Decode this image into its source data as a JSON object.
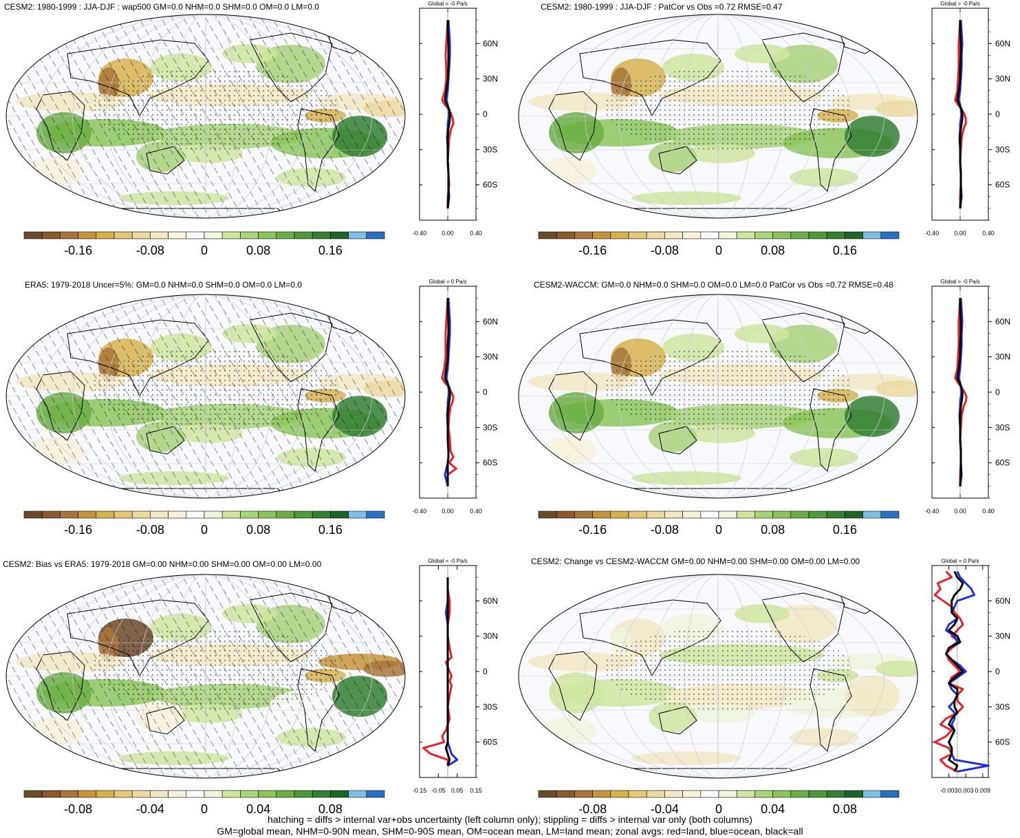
{
  "footnote": {
    "line1": "hatching = diffs > internal var+obs uncertainty (left column only); stippling = diffs > internal var only (both columns)",
    "line2": "GM=global mean, NHM=0-90N mean, SHM=0-90S mean, OM=ocean mean, LM=land mean; zonal avgs: red=land, blue=ocean, black=all"
  },
  "colors": {
    "land": "#e8202a",
    "ocean": "#2030d8",
    "all": "#000000",
    "palette": [
      "#6b4a2a",
      "#8a5a2e",
      "#a8753a",
      "#c4953c",
      "#d6b24e",
      "#e4c878",
      "#ecd9a0",
      "#f3e8c4",
      "#f8f1dc",
      "#fafafa",
      "#eef6dc",
      "#cfe6a0",
      "#a8d47a",
      "#8cc45a",
      "#6cae45",
      "#4e9a3c",
      "#347f32",
      "#1f6428",
      "#7fbfe6",
      "#2a72c0"
    ]
  },
  "panels": [
    {
      "title": "CESM2: 1980-1999 : JJA-DJF : wap500 GM=0.0 NHM=0.0 SHM=0.0 OM=0.0 LM=0.0",
      "global_label": "Global = -0 Pa/s",
      "cbar_labels": [
        "-0.16",
        "-0.08",
        "0",
        "0.08",
        "0.16"
      ],
      "zonal_xticks": [
        "-0.40",
        "0.00",
        "0.40"
      ],
      "lat_labels": [
        "60N",
        "30N",
        "0",
        "30S",
        "60S"
      ],
      "hatching": true
    },
    {
      "title": "CESM2: 1980-1999 : JJA-DJF : PatCor vs Obs =0.72 RMSE=0.47",
      "global_label": "Global = -0 Pa/s",
      "cbar_labels": [
        "-0.16",
        "-0.08",
        "0",
        "0.08",
        "0.16"
      ],
      "zonal_xticks": [
        "-0.40",
        "0.00",
        "0.40"
      ],
      "lat_labels": [
        "60N",
        "30N",
        "0",
        "30S",
        "60S"
      ],
      "hatching": false
    },
    {
      "title": "ERA5: 1979-2018 Uncer=5%: GM=0.0 NHM=0.0 SHM=0.0 OM=0.0 LM=0.0",
      "global_label": "Global = 0 Pa/s",
      "cbar_labels": [
        "-0.16",
        "-0.08",
        "0",
        "0.08",
        "0.16"
      ],
      "zonal_xticks": [
        "-0.40",
        "0.00",
        "0.40"
      ],
      "lat_labels": [
        "60N",
        "30N",
        "0",
        "30S",
        "60S"
      ],
      "hatching": true
    },
    {
      "title": "CESM2-WACCM: GM=0.0 NHM=0.0 SHM=0.0 OM=0.0 LM=0.0 PatCor vs Obs =0.72 RMSE=0.48",
      "global_label": "Global = -0 Pa/s",
      "cbar_labels": [
        "-0.16",
        "-0.08",
        "0",
        "0.08",
        "0.16"
      ],
      "zonal_xticks": [
        "-0.40",
        "0.00",
        "0.40"
      ],
      "lat_labels": [
        "60N",
        "30N",
        "0",
        "30S",
        "60S"
      ],
      "hatching": false
    },
    {
      "title": "CESM2: Bias vs ERA5: 1979-2018 GM=0.00 NHM=0.00 SHM=0.00 OM=0.00 LM=0.00",
      "global_label": "Global = -0 Pa/s",
      "cbar_labels": [
        "-0.08",
        "-0.04",
        "0",
        "0.04",
        "0.08"
      ],
      "zonal_xticks": [
        "-0.15",
        "-0.05",
        "0.05",
        "0.15"
      ],
      "lat_labels": [
        "60N",
        "30N",
        "0",
        "30S",
        "60S"
      ],
      "hatching": true
    },
    {
      "title": "CESM2: Change vs CESM2-WACCM GM=0.00 NHM=0.00 SHM=0.00 OM=0.00 LM=0.00",
      "global_label": "Global = 0 Pa/s",
      "cbar_labels": [
        "-0.08",
        "-0.04",
        "0",
        "0.04",
        "0.08"
      ],
      "zonal_xticks": [
        "-0.003",
        "0.003",
        "0.009"
      ],
      "lat_labels": [
        "60N",
        "30N",
        "0",
        "30S",
        "60S"
      ],
      "hatching": false
    }
  ],
  "chart_data": [
    {
      "type": "line",
      "title": "CESM2: 1980-1999 : JJA-DJF : wap500 GM=0.0 NHM=0.0 SHM=0.0 OM=0.0 LM=0.0",
      "xlim": [
        -0.4,
        0.4
      ],
      "ylim": [
        -90,
        90
      ],
      "y": [
        80,
        70,
        60,
        50,
        40,
        30,
        20,
        12,
        8,
        4,
        0,
        -4,
        -8,
        -12,
        -20,
        -30,
        -40,
        -50,
        -60,
        -70,
        -80
      ],
      "series": [
        {
          "name": "land",
          "values": [
            0.0,
            -0.01,
            -0.02,
            -0.03,
            -0.02,
            -0.02,
            -0.04,
            -0.08,
            -0.04,
            0.02,
            0.05,
            0.07,
            0.08,
            0.05,
            0.02,
            0.01,
            0.0,
            0.01,
            0.02,
            0.0,
            0.0
          ]
        },
        {
          "name": "ocean",
          "values": [
            0.01,
            0.02,
            0.03,
            0.03,
            0.02,
            0.01,
            0.0,
            -0.02,
            0.0,
            0.01,
            0.02,
            0.01,
            0.0,
            0.0,
            -0.01,
            0.0,
            0.0,
            0.01,
            0.01,
            0.02,
            0.0
          ]
        },
        {
          "name": "all",
          "values": [
            0.0,
            0.0,
            0.01,
            0.01,
            0.01,
            0.0,
            -0.02,
            -0.04,
            -0.01,
            0.02,
            0.03,
            0.03,
            0.02,
            0.01,
            0.0,
            0.0,
            0.0,
            0.01,
            0.01,
            0.01,
            0.0
          ]
        }
      ]
    },
    {
      "type": "line",
      "title": "CESM2: 1980-1999 : JJA-DJF : PatCor vs Obs =0.72 RMSE=0.47",
      "xlim": [
        -0.4,
        0.4
      ],
      "ylim": [
        -90,
        90
      ],
      "y": [
        80,
        70,
        60,
        50,
        40,
        30,
        20,
        12,
        8,
        4,
        0,
        -4,
        -8,
        -12,
        -20,
        -30,
        -40,
        -50,
        -60,
        -70,
        -80
      ],
      "series": [
        {
          "name": "land",
          "values": [
            0.0,
            -0.01,
            -0.02,
            -0.02,
            -0.02,
            -0.03,
            -0.04,
            -0.07,
            -0.03,
            0.02,
            0.06,
            0.08,
            0.08,
            0.05,
            0.02,
            0.01,
            0.0,
            0.01,
            0.01,
            0.0,
            0.0
          ]
        },
        {
          "name": "ocean",
          "values": [
            0.01,
            0.02,
            0.03,
            0.02,
            0.02,
            0.01,
            0.0,
            -0.02,
            0.0,
            0.01,
            0.02,
            0.01,
            0.0,
            0.0,
            -0.01,
            0.0,
            0.0,
            0.01,
            0.01,
            0.02,
            0.0
          ]
        },
        {
          "name": "all",
          "values": [
            0.0,
            0.0,
            0.01,
            0.01,
            0.0,
            0.0,
            -0.02,
            -0.04,
            -0.01,
            0.02,
            0.03,
            0.03,
            0.02,
            0.01,
            0.0,
            0.0,
            0.0,
            0.01,
            0.01,
            0.01,
            0.0
          ]
        }
      ]
    },
    {
      "type": "line",
      "title": "ERA5: 1979-2018 Uncer=5%: GM=0.0 NHM=0.0 SHM=0.0 OM=0.0 LM=0.0",
      "xlim": [
        -0.4,
        0.4
      ],
      "ylim": [
        -90,
        90
      ],
      "y": [
        80,
        70,
        60,
        50,
        40,
        30,
        20,
        12,
        8,
        4,
        0,
        -4,
        -8,
        -12,
        -20,
        -30,
        -40,
        -50,
        -55,
        -60,
        -65,
        -70,
        -80
      ],
      "series": [
        {
          "name": "land",
          "values": [
            0.0,
            -0.01,
            -0.02,
            -0.03,
            -0.03,
            -0.03,
            -0.05,
            -0.08,
            -0.04,
            0.02,
            0.05,
            0.08,
            0.07,
            0.04,
            0.02,
            0.01,
            0.03,
            0.04,
            0.08,
            0.02,
            0.12,
            0.0,
            0.0
          ]
        },
        {
          "name": "ocean",
          "values": [
            0.01,
            0.02,
            0.03,
            0.03,
            0.02,
            0.01,
            0.0,
            -0.02,
            0.0,
            0.01,
            0.02,
            0.01,
            0.0,
            0.0,
            -0.01,
            0.0,
            0.0,
            0.01,
            0.01,
            0.0,
            -0.02,
            -0.04,
            0.0
          ]
        },
        {
          "name": "all",
          "values": [
            0.0,
            0.0,
            0.01,
            0.01,
            0.0,
            0.0,
            -0.02,
            -0.04,
            -0.01,
            0.02,
            0.03,
            0.03,
            0.02,
            0.01,
            0.0,
            0.0,
            0.0,
            0.01,
            0.01,
            0.0,
            0.0,
            0.0,
            0.0
          ]
        }
      ]
    },
    {
      "type": "line",
      "title": "CESM2-WACCM: GM=0.0 NHM=0.0 SHM=0.0 OM=0.0 LM=0.0 PatCor vs Obs =0.72 RMSE=0.48",
      "xlim": [
        -0.4,
        0.4
      ],
      "ylim": [
        -90,
        90
      ],
      "y": [
        80,
        70,
        60,
        50,
        40,
        30,
        20,
        12,
        8,
        4,
        0,
        -4,
        -8,
        -12,
        -20,
        -30,
        -40,
        -50,
        -60,
        -70,
        -80
      ],
      "series": [
        {
          "name": "land",
          "values": [
            0.0,
            -0.01,
            -0.02,
            -0.02,
            -0.02,
            -0.03,
            -0.04,
            -0.07,
            -0.03,
            0.02,
            0.06,
            0.09,
            0.08,
            0.05,
            0.02,
            0.01,
            0.0,
            0.01,
            0.01,
            0.0,
            0.0
          ]
        },
        {
          "name": "ocean",
          "values": [
            0.01,
            0.02,
            0.03,
            0.02,
            0.02,
            0.01,
            0.0,
            -0.02,
            0.0,
            0.01,
            0.02,
            0.01,
            0.0,
            0.0,
            -0.01,
            0.0,
            0.0,
            0.01,
            0.01,
            0.02,
            0.0
          ]
        },
        {
          "name": "all",
          "values": [
            0.0,
            0.0,
            0.01,
            0.01,
            0.0,
            0.0,
            -0.02,
            -0.04,
            -0.01,
            0.02,
            0.03,
            0.03,
            0.02,
            0.01,
            0.0,
            0.0,
            0.0,
            0.01,
            0.01,
            0.01,
            0.0
          ]
        }
      ]
    },
    {
      "type": "line",
      "title": "CESM2: Bias vs ERA5: 1979-2018 GM=0.00 NHM=0.00 SHM=0.00 OM=0.00 LM=0.00",
      "xlim": [
        -0.15,
        0.15
      ],
      "ylim": [
        -90,
        90
      ],
      "y": [
        80,
        70,
        60,
        50,
        40,
        30,
        20,
        12,
        8,
        4,
        0,
        -4,
        -8,
        -12,
        -20,
        -30,
        -40,
        -50,
        -55,
        -60,
        -65,
        -70,
        -75,
        -80
      ],
      "series": [
        {
          "name": "land",
          "values": [
            0.0,
            0.0,
            0.01,
            0.01,
            0.0,
            0.0,
            0.01,
            0.02,
            -0.01,
            0.0,
            0.01,
            0.02,
            0.01,
            0.02,
            0.01,
            0.0,
            0.01,
            -0.01,
            -0.03,
            -0.02,
            -0.13,
            -0.09,
            0.0,
            0.0
          ]
        },
        {
          "name": "ocean",
          "values": [
            0.0,
            0.0,
            0.0,
            -0.01,
            0.0,
            0.0,
            0.0,
            0.0,
            0.0,
            0.0,
            0.0,
            0.0,
            0.0,
            0.0,
            0.0,
            0.0,
            0.0,
            0.0,
            0.0,
            0.0,
            0.01,
            0.02,
            0.05,
            0.0
          ]
        },
        {
          "name": "all",
          "values": [
            0.0,
            0.0,
            0.0,
            0.0,
            0.0,
            0.0,
            0.0,
            0.0,
            0.0,
            0.0,
            0.0,
            0.0,
            0.0,
            0.0,
            0.0,
            0.0,
            0.0,
            0.0,
            0.0,
            0.0,
            -0.01,
            0.0,
            0.01,
            0.0
          ]
        }
      ]
    },
    {
      "type": "line",
      "title": "CESM2: Change vs CESM2-WACCM GM=0.00 NHM=0.00 SHM=0.00 OM=0.00 LM=0.00",
      "xlim": [
        -0.009,
        0.011
      ],
      "ylim": [
        -90,
        90
      ],
      "y": [
        85,
        80,
        75,
        70,
        65,
        60,
        55,
        50,
        45,
        40,
        35,
        30,
        25,
        20,
        15,
        10,
        5,
        0,
        -5,
        -10,
        -15,
        -20,
        -25,
        -30,
        -35,
        -40,
        -45,
        -50,
        -55,
        -60,
        -65,
        -70,
        -75,
        -80,
        -85
      ],
      "series": [
        {
          "name": "land",
          "values": [
            -0.004,
            -0.002,
            -0.007,
            -0.006,
            -0.008,
            -0.005,
            -0.002,
            -0.001,
            0.001,
            0.002,
            0.0,
            -0.002,
            0.001,
            -0.002,
            -0.004,
            -0.003,
            -0.001,
            0.001,
            -0.002,
            -0.003,
            0.002,
            0.0,
            0.0,
            0.002,
            0.0,
            -0.004,
            -0.006,
            -0.002,
            -0.004,
            -0.008,
            -0.003,
            -0.002,
            -0.006,
            -0.004,
            0.0
          ]
        },
        {
          "name": "ocean",
          "values": [
            0.0,
            0.001,
            0.003,
            0.005,
            0.006,
            0.0,
            -0.001,
            -0.002,
            0.0,
            -0.003,
            -0.004,
            -0.001,
            0.0,
            -0.003,
            -0.004,
            -0.002,
            0.001,
            0.003,
            0.0,
            -0.003,
            -0.002,
            0.0,
            -0.001,
            -0.003,
            -0.001,
            -0.001,
            -0.002,
            -0.001,
            -0.002,
            -0.003,
            -0.002,
            -0.002,
            -0.001,
            0.011,
            0.0
          ]
        },
        {
          "name": "all",
          "values": [
            -0.001,
            0.0,
            0.002,
            0.001,
            -0.001,
            -0.002,
            -0.002,
            -0.002,
            0.0,
            -0.001,
            -0.003,
            0.0,
            0.001,
            -0.003,
            -0.004,
            -0.002,
            0.0,
            0.002,
            -0.001,
            -0.003,
            0.0,
            0.0,
            -0.001,
            -0.001,
            0.0,
            -0.002,
            -0.003,
            -0.001,
            -0.002,
            -0.003,
            -0.002,
            -0.002,
            -0.003,
            0.0,
            -0.001
          ]
        }
      ]
    }
  ]
}
